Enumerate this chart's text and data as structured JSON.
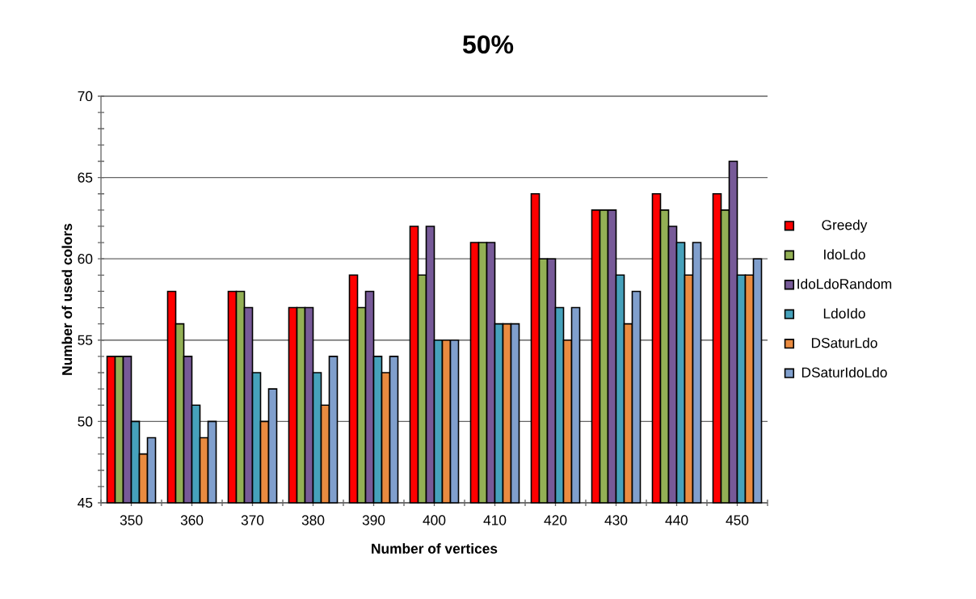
{
  "chart_data": {
    "type": "bar",
    "title": "50%",
    "xlabel": "Number of vertices",
    "ylabel": "Number of used colors",
    "categories": [
      "350",
      "360",
      "370",
      "380",
      "390",
      "400",
      "410",
      "420",
      "430",
      "440",
      "450"
    ],
    "series": [
      {
        "name": "Greedy",
        "color": "#ff0000",
        "values": [
          54,
          58,
          58,
          57,
          59,
          62,
          61,
          64,
          63,
          64,
          64
        ]
      },
      {
        "name": "IdoLdo",
        "color": "#93b055",
        "values": [
          54,
          56,
          58,
          57,
          57,
          59,
          61,
          60,
          63,
          63,
          63
        ]
      },
      {
        "name": "IdoLdoRandom",
        "color": "#775a98",
        "values": [
          54,
          54,
          57,
          57,
          58,
          62,
          61,
          60,
          63,
          62,
          66
        ]
      },
      {
        "name": "LdoIdo",
        "color": "#46a1bb",
        "values": [
          50,
          51,
          53,
          53,
          54,
          55,
          56,
          57,
          59,
          61,
          59
        ]
      },
      {
        "name": "DSaturLdo",
        "color": "#ea8b40",
        "values": [
          48,
          49,
          50,
          51,
          53,
          55,
          56,
          55,
          56,
          59,
          59
        ]
      },
      {
        "name": "DSaturIdoLdo",
        "color": "#809fcd",
        "values": [
          49,
          50,
          52,
          54,
          54,
          55,
          56,
          57,
          58,
          61,
          60
        ]
      }
    ],
    "ylim": [
      45,
      70
    ],
    "yticks": [
      45,
      50,
      55,
      60,
      65,
      70
    ],
    "grid": "y",
    "legend": "right"
  }
}
